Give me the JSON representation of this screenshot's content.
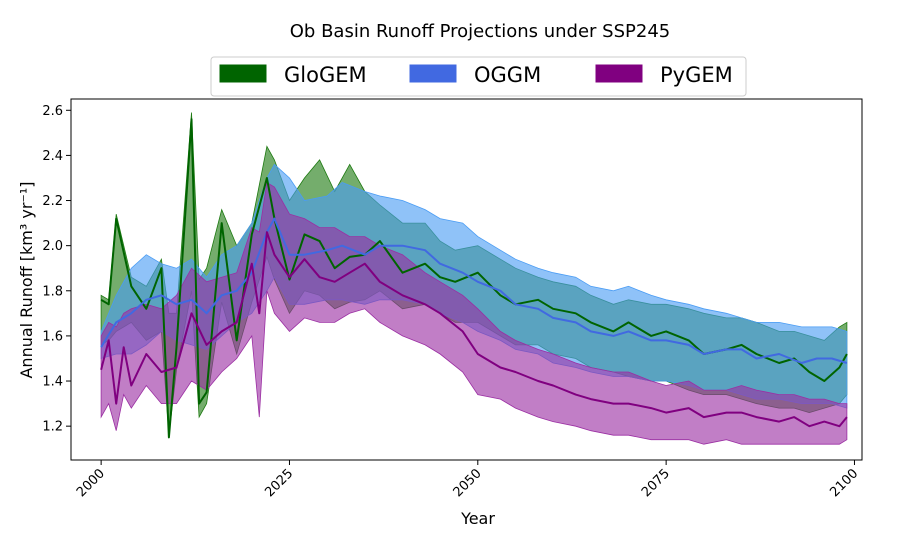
{
  "chart_data": {
    "type": "line",
    "title": "Ob Basin Runoff Projections under SSP245",
    "xlabel": "Year",
    "ylabel": "Annual Runoff [km³ yr⁻¹]",
    "xlim": [
      1996,
      2101
    ],
    "ylim": [
      1.05,
      2.65
    ],
    "xticks": [
      2000,
      2025,
      2050,
      2075,
      2100
    ],
    "yticks": [
      1.2,
      1.4,
      1.6,
      1.8,
      2.0,
      2.2,
      2.4,
      2.6
    ],
    "grid": false,
    "legend_position": "top-center",
    "series": [
      {
        "name": "GloGEM",
        "color": "#006400",
        "fill_color": "#1e7a12",
        "x": [
          2000,
          2001,
          2002,
          2004,
          2006,
          2008,
          2009,
          2010,
          2012,
          2013,
          2014,
          2016,
          2018,
          2020,
          2022,
          2023,
          2025,
          2027,
          2029,
          2031,
          2033,
          2035,
          2037,
          2040,
          2043,
          2045,
          2047,
          2050,
          2053,
          2055,
          2058,
          2060,
          2063,
          2065,
          2068,
          2070,
          2073,
          2075,
          2078,
          2080,
          2083,
          2085,
          2087,
          2090,
          2092,
          2094,
          2096,
          2098,
          2099
        ],
        "mean": [
          1.76,
          1.74,
          2.12,
          1.82,
          1.72,
          1.9,
          1.15,
          1.55,
          2.56,
          1.3,
          1.35,
          2.1,
          1.58,
          2.05,
          2.3,
          2.12,
          1.85,
          2.05,
          2.02,
          1.9,
          1.95,
          1.96,
          2.02,
          1.88,
          1.92,
          1.86,
          1.84,
          1.88,
          1.78,
          1.74,
          1.76,
          1.72,
          1.7,
          1.66,
          1.62,
          1.66,
          1.6,
          1.62,
          1.58,
          1.52,
          1.54,
          1.56,
          1.52,
          1.48,
          1.5,
          1.44,
          1.4,
          1.46,
          1.52
        ],
        "lower": [
          1.56,
          1.58,
          1.62,
          1.66,
          1.58,
          1.62,
          1.16,
          1.45,
          1.8,
          1.24,
          1.3,
          1.75,
          1.52,
          1.75,
          1.95,
          1.85,
          1.7,
          1.8,
          1.78,
          1.72,
          1.75,
          1.76,
          1.8,
          1.72,
          1.74,
          1.7,
          1.66,
          1.66,
          1.6,
          1.56,
          1.56,
          1.52,
          1.5,
          1.46,
          1.44,
          1.42,
          1.4,
          1.4,
          1.36,
          1.34,
          1.34,
          1.32,
          1.3,
          1.28,
          1.28,
          1.26,
          1.28,
          1.3,
          1.34
        ],
        "upper": [
          1.78,
          1.76,
          2.14,
          1.86,
          1.82,
          1.94,
          1.7,
          1.7,
          2.59,
          1.85,
          1.9,
          2.16,
          2.0,
          2.1,
          2.44,
          2.38,
          2.2,
          2.3,
          2.38,
          2.24,
          2.36,
          2.24,
          2.18,
          2.1,
          2.1,
          2.02,
          1.98,
          2.0,
          1.94,
          1.9,
          1.86,
          1.84,
          1.82,
          1.78,
          1.74,
          1.76,
          1.74,
          1.74,
          1.72,
          1.7,
          1.68,
          1.68,
          1.66,
          1.62,
          1.62,
          1.6,
          1.58,
          1.64,
          1.66
        ]
      },
      {
        "name": "OGGM",
        "color": "#4169e1",
        "fill_color": "#4a9cf4",
        "x": [
          2000,
          2002,
          2004,
          2006,
          2008,
          2010,
          2012,
          2014,
          2016,
          2018,
          2020,
          2022,
          2023,
          2025,
          2027,
          2030,
          2032,
          2035,
          2037,
          2040,
          2043,
          2045,
          2048,
          2050,
          2053,
          2055,
          2058,
          2060,
          2063,
          2065,
          2068,
          2070,
          2073,
          2075,
          2078,
          2080,
          2083,
          2085,
          2087,
          2090,
          2093,
          2095,
          2097,
          2099
        ],
        "mean": [
          1.55,
          1.66,
          1.7,
          1.76,
          1.78,
          1.74,
          1.76,
          1.7,
          1.78,
          1.8,
          1.88,
          2.06,
          2.12,
          1.96,
          1.96,
          1.98,
          2.0,
          1.96,
          2.0,
          2.0,
          1.98,
          1.92,
          1.88,
          1.84,
          1.8,
          1.74,
          1.72,
          1.68,
          1.66,
          1.62,
          1.6,
          1.62,
          1.58,
          1.58,
          1.56,
          1.52,
          1.54,
          1.54,
          1.5,
          1.52,
          1.48,
          1.5,
          1.5,
          1.48
        ],
        "lower": [
          1.5,
          1.52,
          1.52,
          1.56,
          1.62,
          1.58,
          1.56,
          1.54,
          1.6,
          1.66,
          1.7,
          1.8,
          1.86,
          1.74,
          1.74,
          1.76,
          1.76,
          1.74,
          1.76,
          1.76,
          1.74,
          1.7,
          1.66,
          1.62,
          1.58,
          1.54,
          1.52,
          1.48,
          1.46,
          1.44,
          1.42,
          1.42,
          1.4,
          1.4,
          1.38,
          1.36,
          1.36,
          1.34,
          1.32,
          1.32,
          1.3,
          1.3,
          1.3,
          1.28
        ],
        "upper": [
          1.62,
          1.78,
          1.9,
          1.96,
          1.92,
          1.9,
          1.94,
          1.86,
          1.96,
          2.0,
          2.1,
          2.3,
          2.36,
          2.3,
          2.2,
          2.22,
          2.28,
          2.24,
          2.22,
          2.2,
          2.16,
          2.12,
          2.1,
          2.04,
          1.98,
          1.94,
          1.9,
          1.88,
          1.86,
          1.82,
          1.8,
          1.82,
          1.78,
          1.76,
          1.74,
          1.72,
          1.7,
          1.68,
          1.66,
          1.66,
          1.64,
          1.64,
          1.64,
          1.62
        ]
      },
      {
        "name": "PyGEM",
        "color": "#800080",
        "fill_color": "#9b2fa3",
        "x": [
          2000,
          2001,
          2002,
          2003,
          2004,
          2006,
          2008,
          2010,
          2012,
          2014,
          2016,
          2018,
          2020,
          2021,
          2022,
          2023,
          2025,
          2027,
          2029,
          2031,
          2033,
          2035,
          2037,
          2040,
          2043,
          2045,
          2048,
          2050,
          2053,
          2055,
          2058,
          2060,
          2063,
          2065,
          2068,
          2070,
          2073,
          2075,
          2078,
          2080,
          2083,
          2085,
          2087,
          2090,
          2092,
          2094,
          2096,
          2098,
          2099
        ],
        "mean": [
          1.45,
          1.58,
          1.3,
          1.55,
          1.38,
          1.52,
          1.44,
          1.46,
          1.7,
          1.56,
          1.62,
          1.66,
          1.92,
          1.7,
          2.06,
          1.96,
          1.86,
          1.94,
          1.86,
          1.84,
          1.88,
          1.92,
          1.84,
          1.78,
          1.74,
          1.7,
          1.62,
          1.52,
          1.46,
          1.44,
          1.4,
          1.38,
          1.34,
          1.32,
          1.3,
          1.3,
          1.28,
          1.26,
          1.28,
          1.24,
          1.26,
          1.26,
          1.24,
          1.22,
          1.24,
          1.2,
          1.22,
          1.2,
          1.24
        ],
        "lower": [
          1.24,
          1.3,
          1.18,
          1.34,
          1.28,
          1.38,
          1.3,
          1.3,
          1.4,
          1.36,
          1.44,
          1.5,
          1.6,
          1.24,
          1.8,
          1.7,
          1.62,
          1.68,
          1.66,
          1.66,
          1.7,
          1.72,
          1.66,
          1.6,
          1.56,
          1.52,
          1.44,
          1.34,
          1.32,
          1.28,
          1.24,
          1.22,
          1.2,
          1.18,
          1.16,
          1.16,
          1.14,
          1.14,
          1.14,
          1.12,
          1.14,
          1.12,
          1.12,
          1.12,
          1.12,
          1.12,
          1.12,
          1.12,
          1.14
        ],
        "upper": [
          1.6,
          1.66,
          1.64,
          1.7,
          1.72,
          1.74,
          1.72,
          1.78,
          1.9,
          1.84,
          1.86,
          1.88,
          2.08,
          2.06,
          2.28,
          2.26,
          2.14,
          2.12,
          2.08,
          2.08,
          2.04,
          2.04,
          2.0,
          1.96,
          1.88,
          1.84,
          1.78,
          1.72,
          1.62,
          1.58,
          1.54,
          1.52,
          1.48,
          1.46,
          1.44,
          1.44,
          1.4,
          1.38,
          1.4,
          1.36,
          1.36,
          1.38,
          1.36,
          1.34,
          1.34,
          1.32,
          1.32,
          1.3,
          1.3
        ]
      }
    ]
  }
}
